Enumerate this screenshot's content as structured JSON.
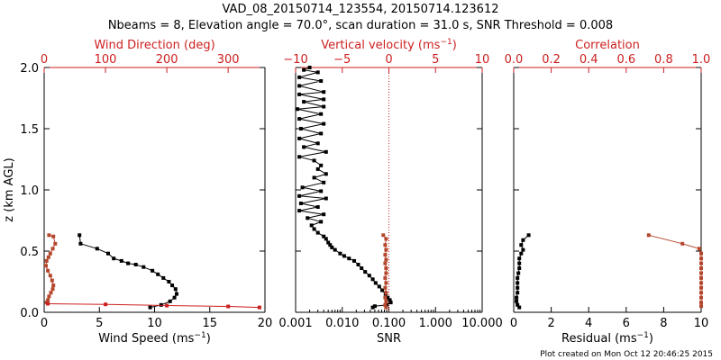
{
  "figure": {
    "title_line1": "VAD_08_20150714_123554, 20150714.123612",
    "title_line2": "Nbeams = 8, Elevation angle = 70.0°, scan duration = 31.0 s, SNR Threshold = 0.008",
    "footer": "Plot created on Mon Oct 12 20:46:25 2015",
    "colors": {
      "black": "#000000",
      "red": "#cc1f1f",
      "brown": "#b5472d"
    }
  },
  "chart_data": [
    {
      "type": "line",
      "panel": "wind",
      "ylabel": "z (km AGL)",
      "ylim": [
        0,
        2.0
      ],
      "yticks": [
        "0.0",
        "0.5",
        "1.0",
        "1.5",
        "2.0"
      ],
      "xlabel_bottom": "Wind Speed (ms",
      "xlabel_bottom_sup": "−1",
      "xlabel_bottom_end": ")",
      "xlim_bottom": [
        0,
        20
      ],
      "xticks_bottom": [
        "0",
        "5",
        "10",
        "15",
        "20"
      ],
      "xlabel_top": "Wind Direction (deg)",
      "xlim_top": [
        0,
        360
      ],
      "xticks_top": [
        "0",
        "100",
        "200",
        "300"
      ],
      "series": [
        {
          "axis": "bottom",
          "color": "#000000",
          "points": [
            [
              3.2,
              0.63
            ],
            [
              3.3,
              0.56
            ],
            [
              4.8,
              0.52
            ],
            [
              5.8,
              0.48
            ],
            [
              6.3,
              0.44
            ],
            [
              7.0,
              0.42
            ],
            [
              7.6,
              0.4
            ],
            [
              8.3,
              0.39
            ],
            [
              9.0,
              0.37
            ],
            [
              9.8,
              0.34
            ],
            [
              10.3,
              0.31
            ],
            [
              10.8,
              0.28
            ],
            [
              11.3,
              0.25
            ],
            [
              11.6,
              0.22
            ],
            [
              11.9,
              0.19
            ],
            [
              12.0,
              0.15
            ],
            [
              11.8,
              0.12
            ],
            [
              11.4,
              0.09
            ],
            [
              10.6,
              0.06
            ],
            [
              9.6,
              0.04
            ]
          ]
        },
        {
          "axis": "top",
          "color": "#b5472d",
          "points": [
            [
              8,
              0.63
            ],
            [
              15,
              0.62
            ],
            [
              18,
              0.56
            ],
            [
              14,
              0.52
            ],
            [
              10,
              0.48
            ],
            [
              7,
              0.45
            ],
            [
              4,
              0.42
            ],
            [
              3,
              0.38
            ],
            [
              6,
              0.34
            ],
            [
              10,
              0.3
            ],
            [
              13,
              0.26
            ],
            [
              15,
              0.22
            ],
            [
              14,
              0.19
            ],
            [
              11,
              0.16
            ],
            [
              8,
              0.13
            ],
            [
              6,
              0.1
            ],
            [
              4,
              0.08
            ]
          ]
        },
        {
          "axis": "top",
          "color": "#cc1f1f",
          "points": [
            [
              6,
              0.07
            ],
            [
              100,
              0.065
            ],
            [
              200,
              0.055
            ],
            [
              300,
              0.048
            ],
            [
              351,
              0.04
            ]
          ]
        }
      ]
    },
    {
      "type": "line",
      "panel": "snr",
      "xscale": "log",
      "xlabel_bottom": "SNR",
      "xlim_bottom": [
        0.001,
        10
      ],
      "xticks_bottom": [
        "0.001",
        "0.010",
        "0.100",
        "1.000",
        "10.000"
      ],
      "xlabel_top": "Vertical velocity (ms",
      "xlabel_top_sup": "−1",
      "xlabel_top_end": ")",
      "xlim_top": [
        -10,
        10
      ],
      "xticks_top": [
        "−10",
        "−5",
        "0",
        "5",
        "10"
      ],
      "zero_reference": 0,
      "series": [
        {
          "axis": "bottom",
          "color": "#000000",
          "points": [
            [
              0.002,
              2.0
            ],
            [
              0.0015,
              1.98
            ],
            [
              0.003,
              1.96
            ],
            [
              0.0012,
              1.92
            ],
            [
              0.0035,
              1.89
            ],
            [
              0.0012,
              1.85
            ],
            [
              0.004,
              1.8
            ],
            [
              0.0012,
              1.78
            ],
            [
              0.004,
              1.74
            ],
            [
              0.0015,
              1.72
            ],
            [
              0.004,
              1.68
            ],
            [
              0.0011,
              1.66
            ],
            [
              0.0035,
              1.62
            ],
            [
              0.0012,
              1.58
            ],
            [
              0.004,
              1.54
            ],
            [
              0.0013,
              1.5
            ],
            [
              0.0035,
              1.46
            ],
            [
              0.0012,
              1.42
            ],
            [
              0.003,
              1.38
            ],
            [
              0.0015,
              1.35
            ],
            [
              0.0045,
              1.31
            ],
            [
              0.0012,
              1.27
            ],
            [
              0.0025,
              1.24
            ],
            [
              0.0035,
              1.2
            ],
            [
              0.003,
              1.17
            ],
            [
              0.0045,
              1.13
            ],
            [
              0.0025,
              1.1
            ],
            [
              0.004,
              1.06
            ],
            [
              0.0014,
              1.02
            ],
            [
              0.0035,
              0.99
            ],
            [
              0.0012,
              0.95
            ],
            [
              0.0045,
              0.93
            ],
            [
              0.0013,
              0.89
            ],
            [
              0.003,
              0.86
            ],
            [
              0.0012,
              0.83
            ],
            [
              0.004,
              0.8
            ],
            [
              0.0018,
              0.77
            ],
            [
              0.0035,
              0.74
            ],
            [
              0.0022,
              0.71
            ],
            [
              0.0025,
              0.68
            ],
            [
              0.003,
              0.65
            ],
            [
              0.004,
              0.62
            ],
            [
              0.0045,
              0.6
            ],
            [
              0.005,
              0.57
            ],
            [
              0.0055,
              0.55
            ],
            [
              0.006,
              0.53
            ],
            [
              0.007,
              0.51
            ],
            [
              0.009,
              0.48
            ],
            [
              0.011,
              0.46
            ],
            [
              0.014,
              0.44
            ],
            [
              0.018,
              0.42
            ],
            [
              0.022,
              0.39
            ],
            [
              0.026,
              0.36
            ],
            [
              0.031,
              0.33
            ],
            [
              0.038,
              0.3
            ],
            [
              0.045,
              0.27
            ],
            [
              0.052,
              0.24
            ],
            [
              0.062,
              0.21
            ],
            [
              0.072,
              0.18
            ],
            [
              0.085,
              0.15
            ],
            [
              0.095,
              0.12
            ],
            [
              0.105,
              0.1
            ],
            [
              0.11,
              0.08
            ],
            [
              0.09,
              0.06
            ],
            [
              0.05,
              0.05
            ],
            [
              0.045,
              0.04
            ]
          ]
        },
        {
          "axis": "top",
          "color": "#b5472d",
          "points": [
            [
              -0.6,
              0.63
            ],
            [
              -0.3,
              0.6
            ],
            [
              -0.4,
              0.55
            ],
            [
              -0.3,
              0.51
            ],
            [
              -0.4,
              0.47
            ],
            [
              -0.3,
              0.43
            ],
            [
              -0.4,
              0.4
            ],
            [
              -0.3,
              0.36
            ],
            [
              -0.3,
              0.32
            ],
            [
              -0.4,
              0.28
            ],
            [
              -0.3,
              0.24
            ],
            [
              -0.4,
              0.2
            ],
            [
              -0.3,
              0.16
            ],
            [
              -0.4,
              0.12
            ],
            [
              -0.3,
              0.09
            ],
            [
              -0.4,
              0.06
            ],
            [
              -0.3,
              0.04
            ]
          ]
        }
      ]
    },
    {
      "type": "line",
      "panel": "residual",
      "xlabel_bottom": "Residual (ms",
      "xlabel_bottom_sup": "−1",
      "xlabel_bottom_end": ")",
      "xlim_bottom": [
        0,
        10
      ],
      "xticks_bottom": [
        "0",
        "2",
        "4",
        "6",
        "8",
        "10"
      ],
      "xlabel_top": "Correlation",
      "xlim_top": [
        0,
        1.0
      ],
      "xticks_top": [
        "0.0",
        "0.2",
        "0.4",
        "0.6",
        "0.8",
        "1.0"
      ],
      "series": [
        {
          "axis": "bottom",
          "color": "#000000",
          "points": [
            [
              0.8,
              0.63
            ],
            [
              0.5,
              0.59
            ],
            [
              0.4,
              0.55
            ],
            [
              0.5,
              0.51
            ],
            [
              0.4,
              0.48
            ],
            [
              0.3,
              0.44
            ],
            [
              0.3,
              0.4
            ],
            [
              0.3,
              0.36
            ],
            [
              0.25,
              0.32
            ],
            [
              0.2,
              0.28
            ],
            [
              0.2,
              0.24
            ],
            [
              0.2,
              0.2
            ],
            [
              0.2,
              0.16
            ],
            [
              0.15,
              0.12
            ],
            [
              0.15,
              0.09
            ],
            [
              0.2,
              0.06
            ],
            [
              0.3,
              0.04
            ]
          ]
        },
        {
          "axis": "top",
          "color": "#b5472d",
          "points": [
            [
              0.72,
              0.63
            ],
            [
              0.9,
              0.56
            ],
            [
              0.99,
              0.52
            ],
            [
              1.0,
              0.48
            ],
            [
              1.0,
              0.44
            ],
            [
              1.0,
              0.4
            ],
            [
              1.0,
              0.36
            ],
            [
              1.0,
              0.32
            ],
            [
              1.0,
              0.28
            ],
            [
              1.0,
              0.24
            ],
            [
              1.0,
              0.2
            ],
            [
              1.0,
              0.16
            ],
            [
              1.0,
              0.12
            ],
            [
              1.0,
              0.08
            ],
            [
              1.0,
              0.05
            ]
          ]
        }
      ]
    }
  ]
}
